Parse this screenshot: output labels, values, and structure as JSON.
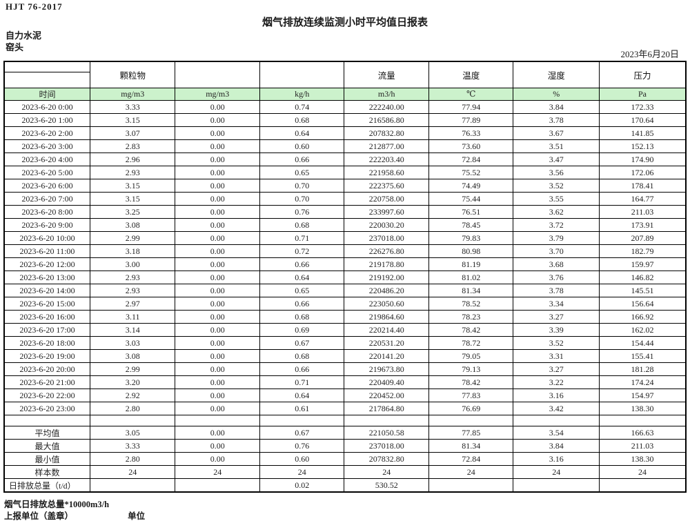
{
  "page": {
    "doc_code": "HJT  76-2017",
    "title": "烟气排放连续监测小时平均值日报表",
    "company": "自力水泥",
    "location": "窑头",
    "date": "2023年6月20日"
  },
  "table": {
    "group_headers": [
      "",
      "颗粒物",
      "",
      "",
      "流量",
      "温度",
      "湿度",
      "压力"
    ],
    "unit_row": [
      "时间",
      "mg/m3",
      "mg/m3",
      "kg/h",
      "m3/h",
      "℃",
      "%",
      "Pa"
    ],
    "rows": [
      [
        "2023-6-20 0:00",
        "3.33",
        "0.00",
        "0.74",
        "222240.00",
        "77.94",
        "3.84",
        "172.33"
      ],
      [
        "2023-6-20 1:00",
        "3.15",
        "0.00",
        "0.68",
        "216586.80",
        "77.89",
        "3.78",
        "170.64"
      ],
      [
        "2023-6-20 2:00",
        "3.07",
        "0.00",
        "0.64",
        "207832.80",
        "76.33",
        "3.67",
        "141.85"
      ],
      [
        "2023-6-20 3:00",
        "2.83",
        "0.00",
        "0.60",
        "212877.00",
        "73.60",
        "3.51",
        "152.13"
      ],
      [
        "2023-6-20 4:00",
        "2.96",
        "0.00",
        "0.66",
        "222203.40",
        "72.84",
        "3.47",
        "174.90"
      ],
      [
        "2023-6-20 5:00",
        "2.93",
        "0.00",
        "0.65",
        "221958.60",
        "75.52",
        "3.56",
        "172.06"
      ],
      [
        "2023-6-20 6:00",
        "3.15",
        "0.00",
        "0.70",
        "222375.60",
        "74.49",
        "3.52",
        "178.41"
      ],
      [
        "2023-6-20 7:00",
        "3.15",
        "0.00",
        "0.70",
        "220758.00",
        "75.44",
        "3.55",
        "164.77"
      ],
      [
        "2023-6-20 8:00",
        "3.25",
        "0.00",
        "0.76",
        "233997.60",
        "76.51",
        "3.62",
        "211.03"
      ],
      [
        "2023-6-20 9:00",
        "3.08",
        "0.00",
        "0.68",
        "220030.20",
        "78.45",
        "3.72",
        "173.91"
      ],
      [
        "2023-6-20 10:00",
        "2.99",
        "0.00",
        "0.71",
        "237018.00",
        "79.83",
        "3.79",
        "207.89"
      ],
      [
        "2023-6-20 11:00",
        "3.18",
        "0.00",
        "0.72",
        "226276.80",
        "80.98",
        "3.70",
        "182.79"
      ],
      [
        "2023-6-20 12:00",
        "3.00",
        "0.00",
        "0.66",
        "219178.80",
        "81.19",
        "3.68",
        "159.97"
      ],
      [
        "2023-6-20 13:00",
        "2.93",
        "0.00",
        "0.64",
        "219192.00",
        "81.02",
        "3.76",
        "146.82"
      ],
      [
        "2023-6-20 14:00",
        "2.93",
        "0.00",
        "0.65",
        "220486.20",
        "81.34",
        "3.78",
        "145.51"
      ],
      [
        "2023-6-20 15:00",
        "2.97",
        "0.00",
        "0.66",
        "223050.60",
        "78.52",
        "3.34",
        "156.64"
      ],
      [
        "2023-6-20 16:00",
        "3.11",
        "0.00",
        "0.68",
        "219864.60",
        "78.23",
        "3.27",
        "166.92"
      ],
      [
        "2023-6-20 17:00",
        "3.14",
        "0.00",
        "0.69",
        "220214.40",
        "78.42",
        "3.39",
        "162.02"
      ],
      [
        "2023-6-20 18:00",
        "3.03",
        "0.00",
        "0.67",
        "220531.20",
        "78.72",
        "3.52",
        "154.44"
      ],
      [
        "2023-6-20 19:00",
        "3.08",
        "0.00",
        "0.68",
        "220141.20",
        "79.05",
        "3.31",
        "155.41"
      ],
      [
        "2023-6-20 20:00",
        "2.99",
        "0.00",
        "0.66",
        "219673.80",
        "79.13",
        "3.27",
        "181.28"
      ],
      [
        "2023-6-20 21:00",
        "3.20",
        "0.00",
        "0.71",
        "220409.40",
        "78.42",
        "3.22",
        "174.24"
      ],
      [
        "2023-6-20 22:00",
        "2.92",
        "0.00",
        "0.64",
        "220452.00",
        "77.83",
        "3.16",
        "154.97"
      ],
      [
        "2023-6-20 23:00",
        "2.80",
        "0.00",
        "0.61",
        "217864.80",
        "76.69",
        "3.42",
        "138.30"
      ]
    ],
    "summary_rows": [
      [
        "平均值",
        "3.05",
        "0.00",
        "0.67",
        "221050.58",
        "77.85",
        "3.54",
        "166.63"
      ],
      [
        "最大值",
        "3.33",
        "0.00",
        "0.76",
        "237018.00",
        "81.34",
        "3.84",
        "211.03"
      ],
      [
        "最小值",
        "2.80",
        "0.00",
        "0.60",
        "207832.80",
        "72.84",
        "3.16",
        "138.30"
      ],
      [
        "样本数",
        "24",
        "24",
        "24",
        "24",
        "24",
        "24",
        "24"
      ],
      [
        "日排放总量（t/d）",
        "",
        "",
        "0.02",
        "530.52",
        "",
        "",
        ""
      ]
    ]
  },
  "footer": {
    "note": "烟气日排放总量*10000m3/h",
    "report_unit_label": "上报单位（盖章）",
    "unit_label": "单位"
  },
  "colors": {
    "unit_row_green": "#ccf2cc",
    "border": "#000000"
  }
}
